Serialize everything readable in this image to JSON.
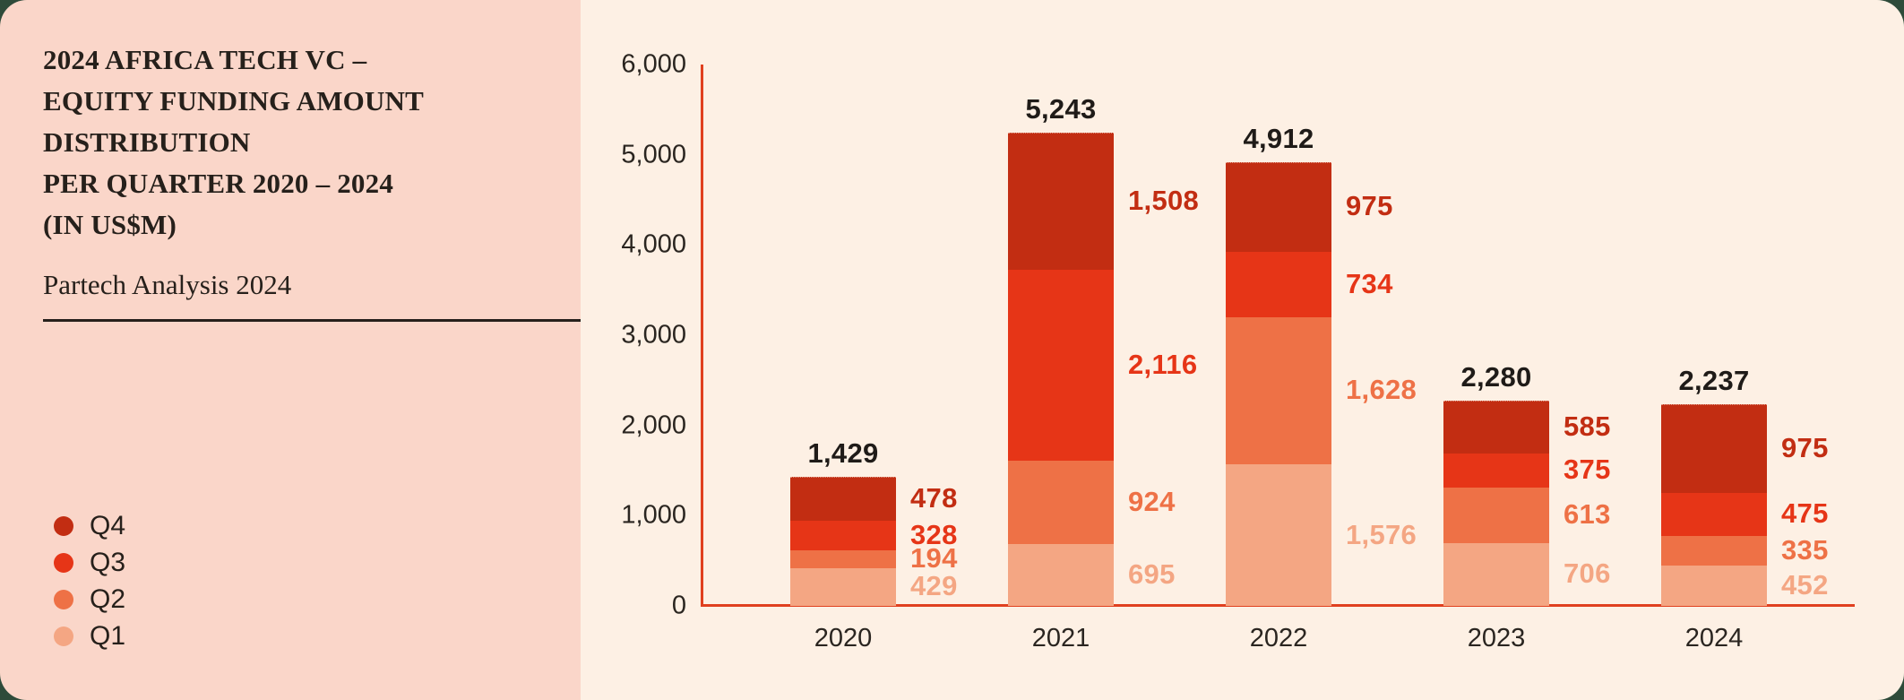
{
  "panel": {
    "title": "2024 AFRICA TECH VC –\nEQUITY FUNDING AMOUNT\nDISTRIBUTION\nPER QUARTER 2020 – 2024\n(IN US$M)",
    "subtitle": "Partech Analysis 2024",
    "background": "#fad6c9"
  },
  "legend": {
    "items": [
      {
        "label": "Q4",
        "color": "#c22d12"
      },
      {
        "label": "Q3",
        "color": "#e63517"
      },
      {
        "label": "Q2",
        "color": "#ee7146"
      },
      {
        "label": "Q1",
        "color": "#f4a683"
      }
    ]
  },
  "colors": {
    "page_background": "#2e4b3a",
    "chart_background": "#fdf0e4",
    "axis": "#e0401f",
    "total_label": "#1f1b18",
    "text": "#26201b"
  },
  "chart_data": {
    "type": "bar",
    "stacked": true,
    "title": "2024 Africa Tech VC – Equity Funding Amount Distribution per Quarter 2020–2024 (in US$M)",
    "categories": [
      "2020",
      "2021",
      "2022",
      "2023",
      "2024"
    ],
    "series": [
      {
        "name": "Q1",
        "color": "#f4a683",
        "values": [
          429,
          695,
          1576,
          706,
          452
        ]
      },
      {
        "name": "Q2",
        "color": "#ee7146",
        "values": [
          194,
          924,
          1628,
          613,
          335
        ]
      },
      {
        "name": "Q3",
        "color": "#e63517",
        "values": [
          328,
          2116,
          734,
          375,
          475
        ]
      },
      {
        "name": "Q4",
        "color": "#c22d12",
        "values": [
          478,
          1508,
          975,
          585,
          975
        ]
      }
    ],
    "totals": [
      "1,429",
      "5,243",
      "4,912",
      "2,280",
      "2,237"
    ],
    "ylabel": "",
    "xlabel": "",
    "ylim": [
      0,
      6000
    ],
    "yticks": [
      "0",
      "1,000",
      "2,000",
      "3,000",
      "4,000",
      "5,000",
      "6,000"
    ],
    "ytick_values": [
      0,
      1000,
      2000,
      3000,
      4000,
      5000,
      6000
    ],
    "grid": false,
    "legend_position": "left-bottom"
  }
}
